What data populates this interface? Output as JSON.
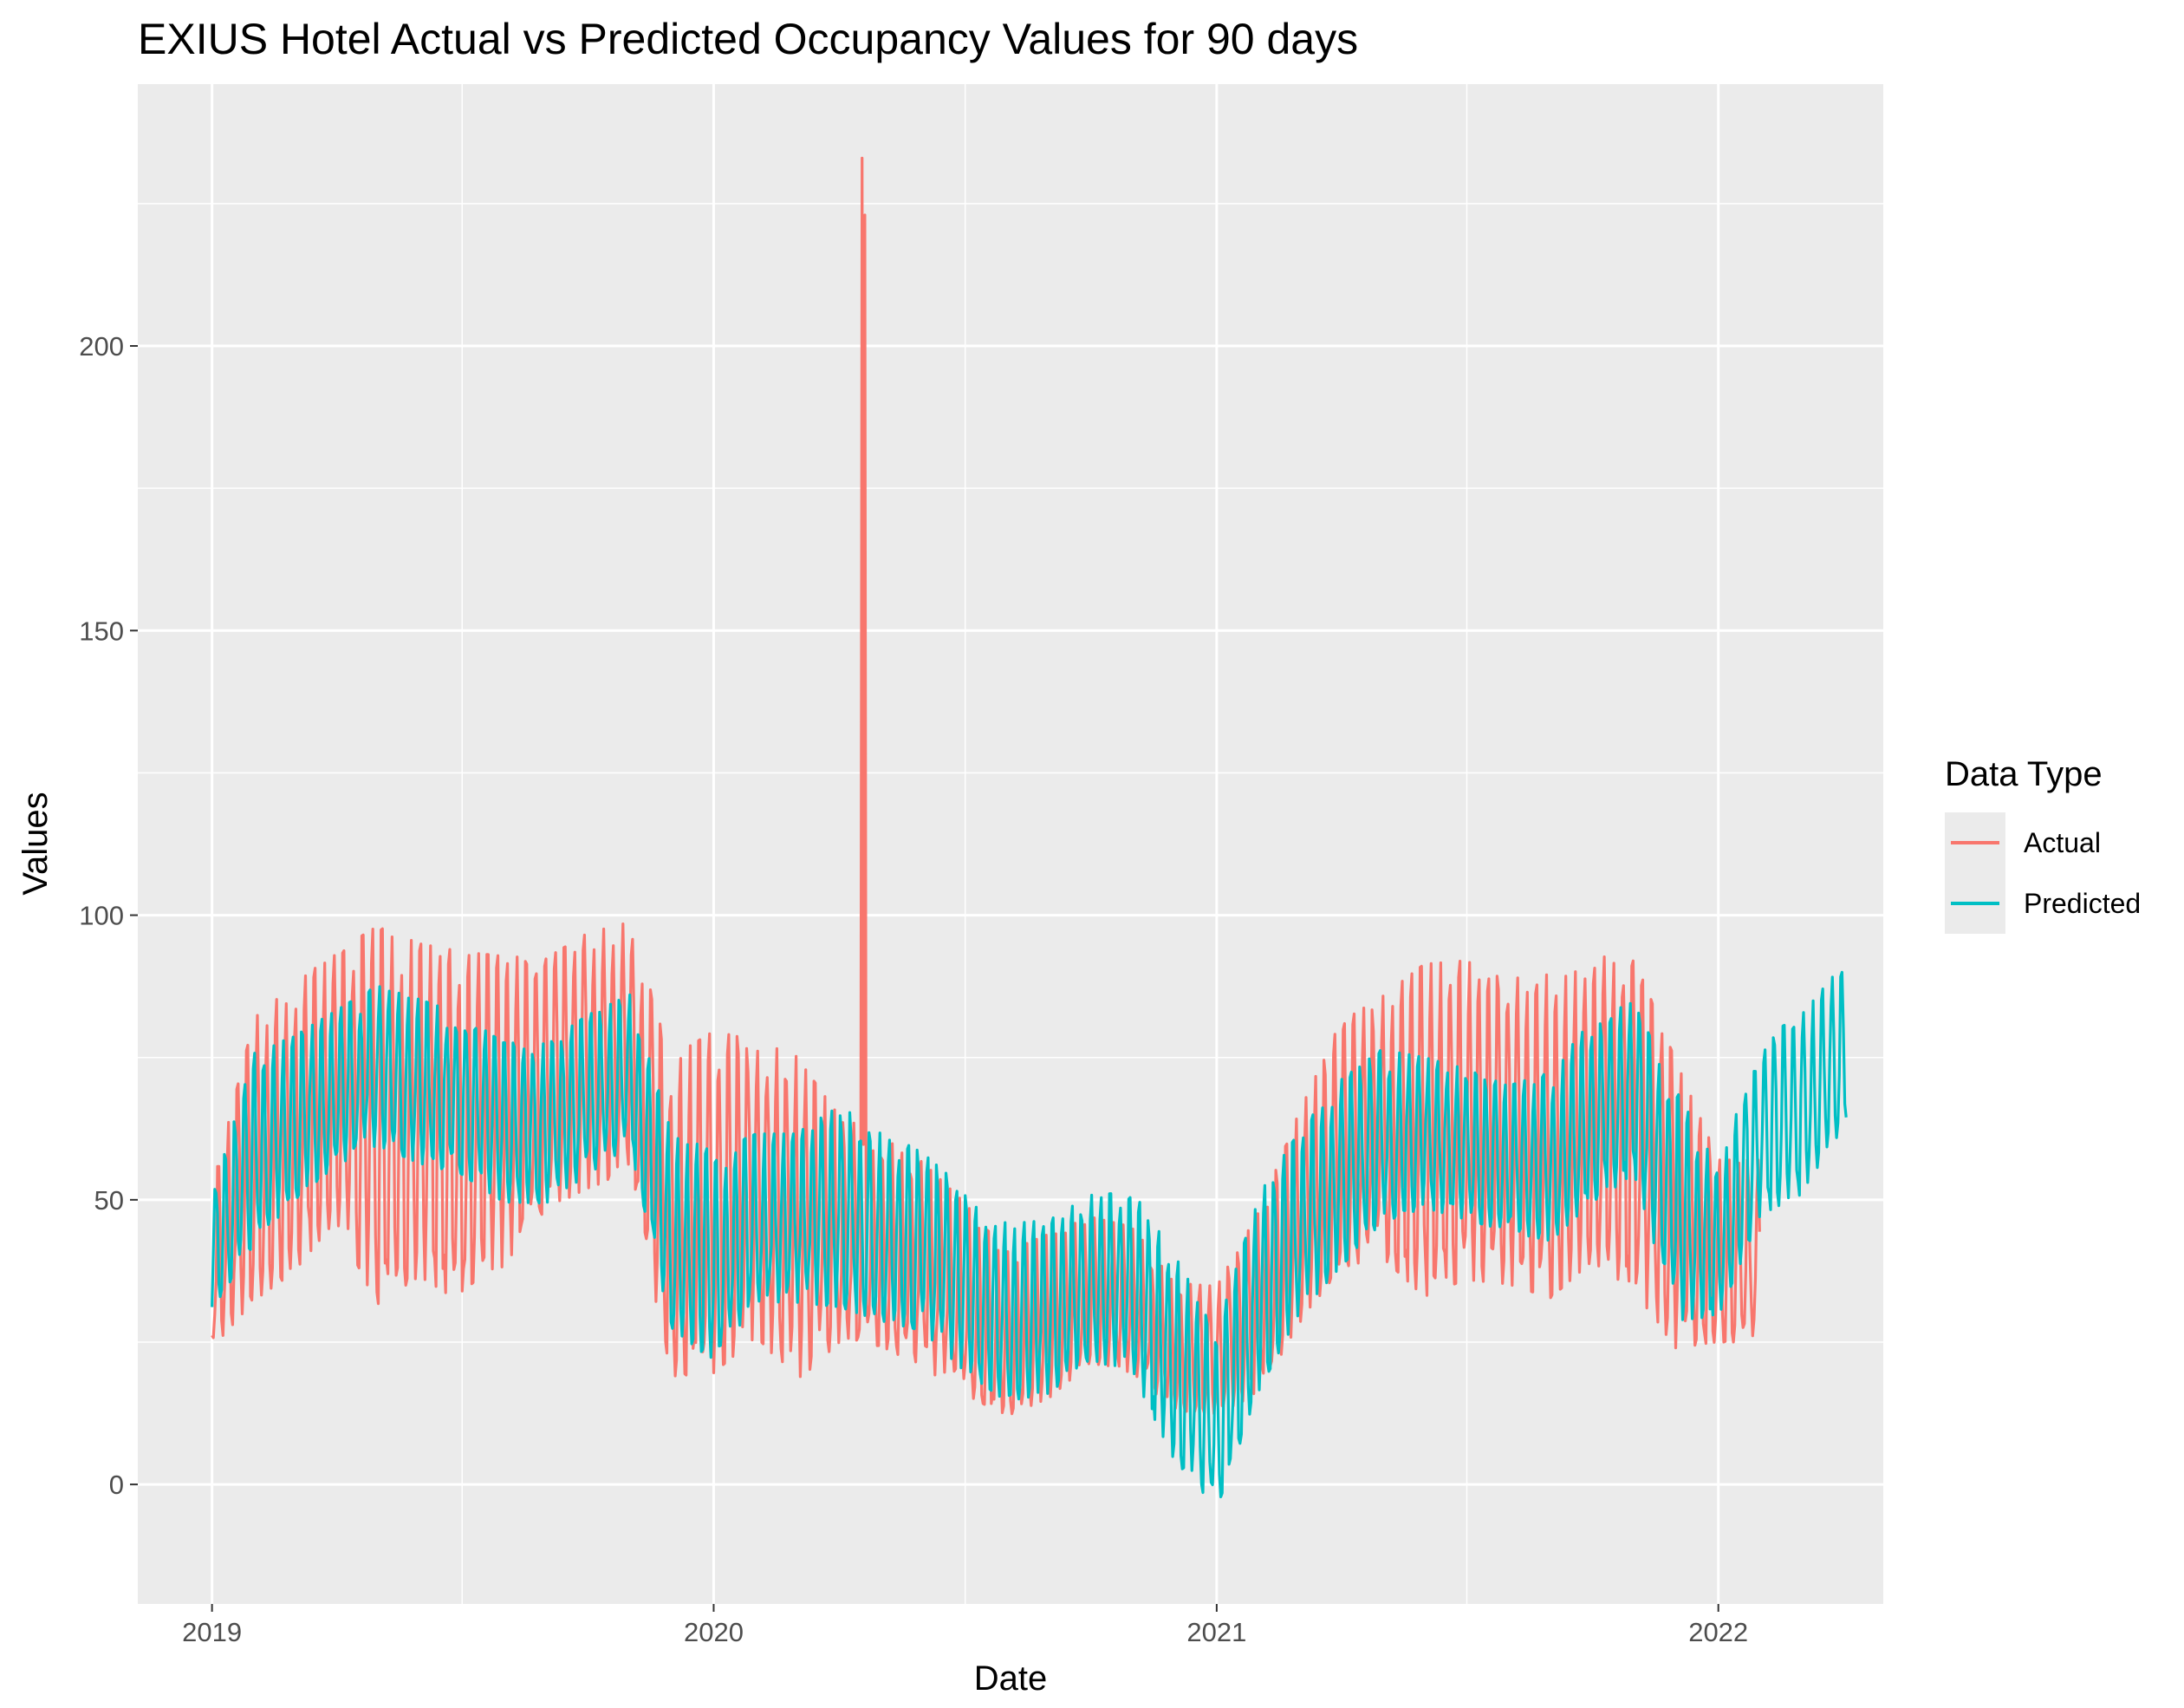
{
  "chart_data": {
    "type": "line",
    "title": "EXIUS Hotel Actual vs Predicted Occupancy Values for 90 days",
    "xlabel": "Date",
    "ylabel": "Values",
    "x_ticks": [
      "2019",
      "2020",
      "2021",
      "2022"
    ],
    "y_ticks": [
      0,
      50,
      100,
      150,
      200
    ],
    "xlim": [
      "2018-11-08",
      "2022-05-01"
    ],
    "ylim": [
      -21,
      246
    ],
    "grid": true,
    "legend": {
      "title": "Data Type",
      "position": "right"
    },
    "x_dates": [
      "2019-01-01",
      "2019-02-01",
      "2019-03-01",
      "2019-04-01",
      "2019-05-01",
      "2019-06-01",
      "2019-07-01",
      "2019-08-01",
      "2019-09-01",
      "2019-10-01",
      "2019-11-01",
      "2019-12-01",
      "2020-01-01",
      "2020-02-01",
      "2020-03-01",
      "2020-04-01",
      "2020-05-01",
      "2020-06-01",
      "2020-07-01",
      "2020-08-01",
      "2020-09-01",
      "2020-10-01",
      "2020-11-01",
      "2020-12-01",
      "2021-01-01",
      "2021-02-01",
      "2021-03-01",
      "2021-04-01",
      "2021-05-01",
      "2021-06-01",
      "2021-07-01",
      "2021-08-01",
      "2021-09-01",
      "2021-10-01",
      "2021-11-01",
      "2021-12-01",
      "2022-01-01",
      "2022-02-01",
      "2022-03-01",
      "2022-04-01"
    ],
    "series": [
      {
        "name": "Actual",
        "color": "#F8766D",
        "values": [
          40,
          62,
          66,
          80,
          78,
          75,
          72,
          72,
          74,
          80,
          82,
          55,
          38,
          50,
          52,
          52,
          42,
          43,
          40,
          32,
          28,
          35,
          38,
          25,
          22,
          40,
          52,
          62,
          60,
          65,
          68,
          64,
          64,
          68,
          70,
          60,
          45,
          null,
          null,
          null
        ],
        "min": [
          20,
          25,
          30,
          38,
          20,
          27,
          22,
          30,
          42,
          45,
          48,
          10,
          15,
          20,
          10,
          17,
          20,
          15,
          10,
          7,
          12,
          18,
          15,
          10,
          10,
          10,
          22,
          32,
          35,
          25,
          28,
          28,
          25,
          32,
          25,
          15,
          20,
          null,
          null,
          null
        ],
        "max": [
          55,
          87,
          93,
          97,
          103,
          100,
          99,
          98,
          97,
          101,
          103,
          80,
          90,
          85,
          81,
          68,
          66,
          60,
          52,
          43,
          48,
          50,
          47,
          38,
          38,
          50,
          68,
          86,
          92,
          98,
          98,
          95,
          96,
          99,
          98,
          78,
          60,
          null,
          null,
          null
        ],
        "spike": {
          "date": "2020-04-18",
          "value": 233
        }
      },
      {
        "name": "Predicted",
        "color": "#00BFC4",
        "values": [
          45,
          60,
          65,
          72,
          78,
          74,
          73,
          68,
          67,
          72,
          78,
          50,
          40,
          52,
          52,
          52,
          48,
          47,
          40,
          33,
          32,
          38,
          37,
          22,
          15,
          35,
          48,
          55,
          62,
          67,
          65,
          62,
          62,
          68,
          72,
          56,
          48,
          65,
          70,
          80
        ],
        "min": [
          27,
          38,
          46,
          52,
          55,
          52,
          50,
          45,
          45,
          50,
          55,
          22,
          17,
          27,
          27,
          26,
          24,
          22,
          15,
          10,
          12,
          18,
          15,
          0,
          -9,
          12,
          25,
          34,
          42,
          44,
          42,
          40,
          38,
          45,
          50,
          22,
          25,
          43,
          46,
          58
        ],
        "max": [
          52,
          80,
          82,
          86,
          90,
          88,
          85,
          80,
          80,
          85,
          88,
          65,
          63,
          64,
          64,
          70,
          66,
          61,
          55,
          49,
          50,
          54,
          55,
          45,
          30,
          55,
          65,
          75,
          80,
          77,
          75,
          72,
          75,
          85,
          88,
          73,
          57,
          82,
          85,
          94
        ]
      }
    ]
  }
}
